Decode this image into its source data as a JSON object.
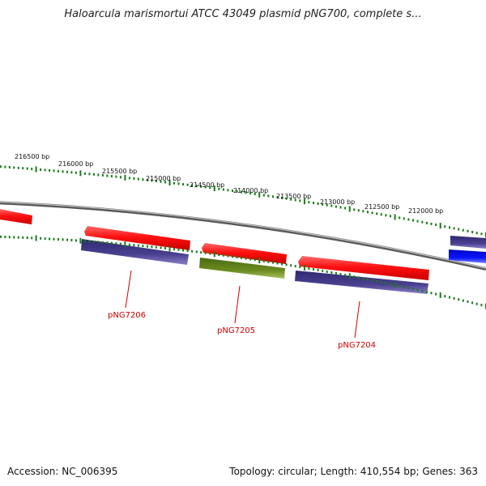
{
  "header": {
    "title": "Haloarcula marismortui ATCC 43049 plasmid pNG700, complete s..."
  },
  "footer": {
    "accession": "Accession: NC_006395",
    "summary": "Topology: circular; Length: 410,554 bp; Genes: 363"
  },
  "colors": {
    "backbone": "#8a8a8a",
    "forward_cds": "#ff1010",
    "reverse_cds": "#4a4090",
    "misc_feature": "#6a8a20",
    "blue_feature": "#0a14ff",
    "tick": "#1a7a1a",
    "gene_label": "#cc0000"
  },
  "ticks": [
    {
      "label": "216500 bp"
    },
    {
      "label": "216000 bp"
    },
    {
      "label": "215500 bp"
    },
    {
      "label": "215000 bp"
    },
    {
      "label": "214500 bp"
    },
    {
      "label": "214000 bp"
    },
    {
      "label": "213500 bp"
    },
    {
      "label": "213000 bp"
    },
    {
      "label": "212500 bp"
    },
    {
      "label": "212000 bp"
    }
  ],
  "gene_labels": [
    {
      "label": "pNG7206"
    },
    {
      "label": "pNG7205"
    },
    {
      "label": "pNG7204"
    }
  ]
}
